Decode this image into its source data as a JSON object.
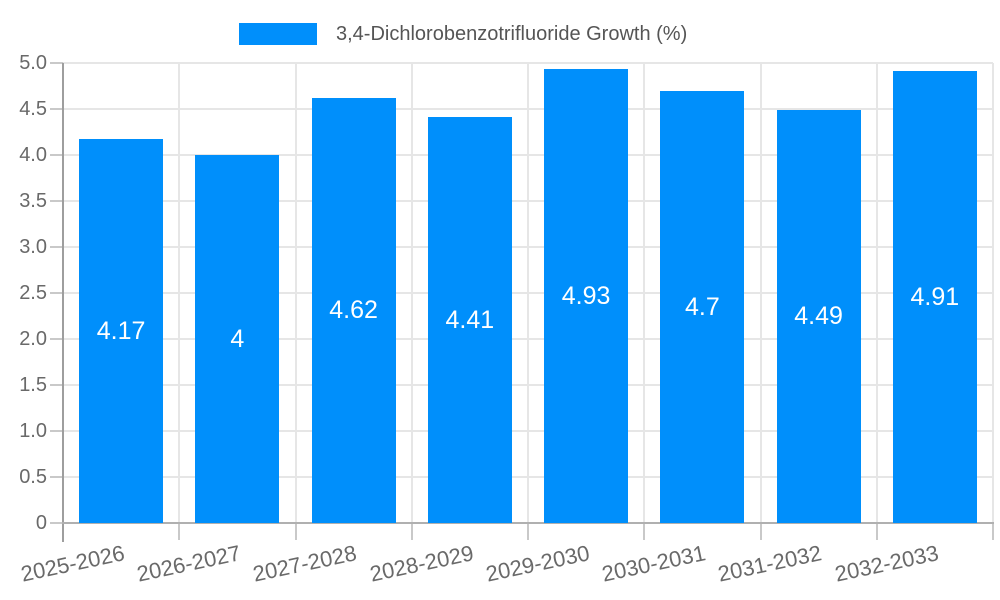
{
  "legend": {
    "label": "3,4-Dichlorobenzotrifluoride Growth (%)",
    "position": "top"
  },
  "colors": {
    "bar": "#008FFB",
    "grid": "#e6e6e6",
    "tick": "#c9c9c9",
    "yaxis_line": "#9e9e9e",
    "baseline": "#b0b0b0",
    "axis_label": "#696969",
    "legend_text": "#555555",
    "value_label": "#ffffff",
    "background": "#ffffff"
  },
  "chart_data": {
    "type": "bar",
    "title": "",
    "categories": [
      "2025-2026",
      "2026-2027",
      "2027-2028",
      "2028-2029",
      "2029-2030",
      "2030-2031",
      "2031-2032",
      "2032-2033"
    ],
    "series": [
      {
        "name": "3,4-Dichlorobenzotrifluoride Growth (%)",
        "values": [
          4.17,
          4,
          4.62,
          4.41,
          4.93,
          4.7,
          4.49,
          4.91
        ]
      }
    ],
    "value_labels": [
      "4.17",
      "4",
      "4.62",
      "4.41",
      "4.93",
      "4.7",
      "4.49",
      "4.91"
    ],
    "xlabel": "",
    "ylabel": "",
    "ylim": [
      0,
      5
    ],
    "ytick_step": 0.5,
    "ytick_labels": [
      "0",
      "0.5",
      "1.0",
      "1.5",
      "2.0",
      "2.5",
      "3.0",
      "3.5",
      "4.0",
      "4.5",
      "5.0"
    ],
    "grid": true,
    "legend_position": "top"
  }
}
